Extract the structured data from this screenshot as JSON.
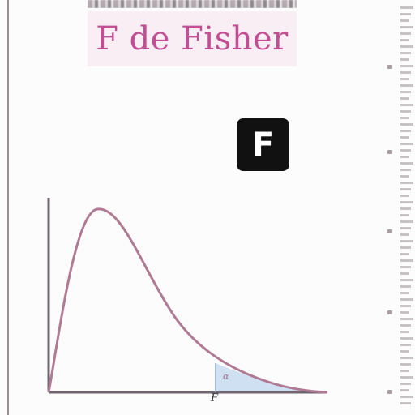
{
  "header": {
    "title": "F de Fisher"
  },
  "badge": {
    "letter": "F"
  },
  "diagram": {
    "x_marker_label": "F",
    "shaded_area_label": "α",
    "curve_color": "#b07a94",
    "shade_color": "#cfe0f2",
    "axis_color": "#6f6670"
  },
  "colors": {
    "title": "#c24f93",
    "title_background": "#f8eef4",
    "badge_background": "#111111"
  }
}
